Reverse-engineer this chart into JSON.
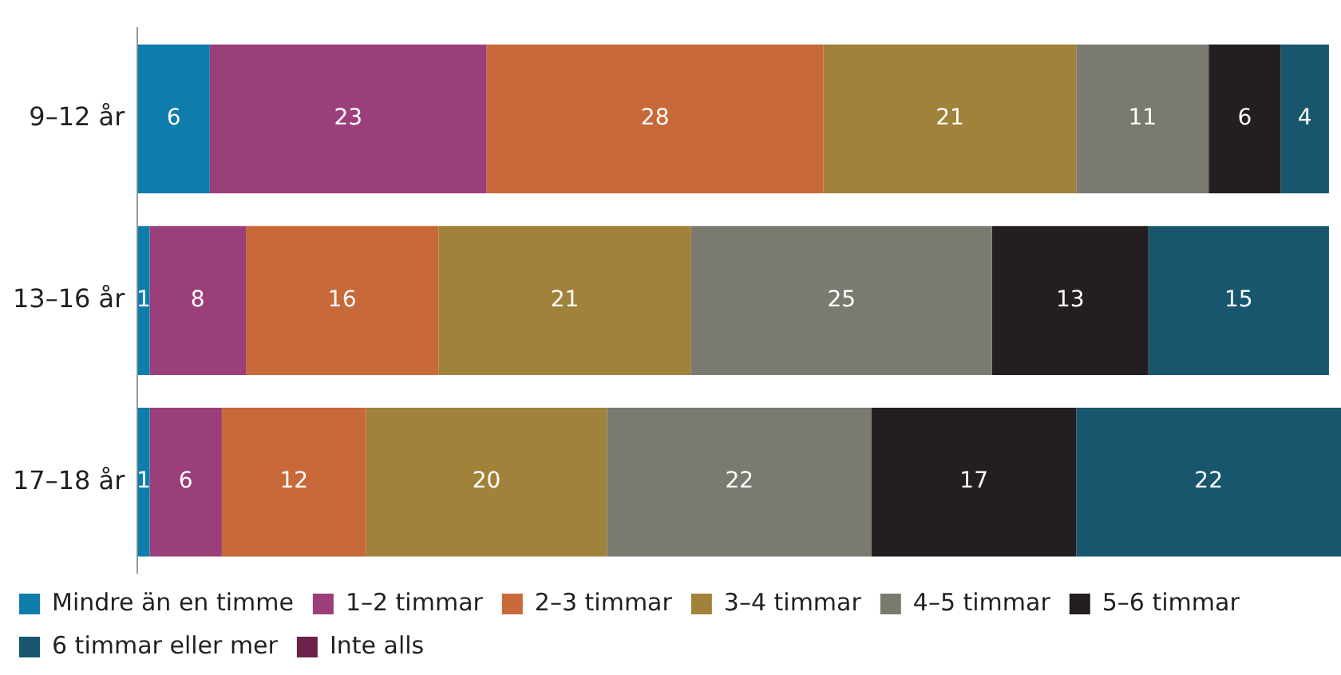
{
  "chart_data": {
    "type": "bar",
    "orientation": "horizontal",
    "stacked": true,
    "categories": [
      "9–12 år",
      "13–16 år",
      "17–18 år"
    ],
    "series": [
      {
        "name": "Mindre än en timme",
        "color": "#0f7dab",
        "values": [
          6,
          1,
          1
        ]
      },
      {
        "name": "1–2 timmar",
        "color": "#9b3f7b",
        "values": [
          23,
          8,
          6
        ]
      },
      {
        "name": "2–3 timmar",
        "color": "#c8693a",
        "values": [
          28,
          16,
          12
        ]
      },
      {
        "name": "3–4 timmar",
        "color": "#a1823a",
        "values": [
          21,
          21,
          20
        ]
      },
      {
        "name": "4–5 timmar",
        "color": "#7a7a71",
        "values": [
          11,
          25,
          22
        ]
      },
      {
        "name": "5–6 timmar",
        "color": "#231f20",
        "values": [
          6,
          13,
          17
        ]
      },
      {
        "name": "6 timmar eller mer",
        "color": "#17566d",
        "values": [
          4,
          15,
          22
        ]
      },
      {
        "name": "Inte alls",
        "color": "#6a2248",
        "values": [
          null,
          null,
          null
        ]
      }
    ],
    "xlim": [
      0,
      100
    ],
    "tick_labels": "y",
    "legend": "bottom",
    "data_labels": true
  }
}
